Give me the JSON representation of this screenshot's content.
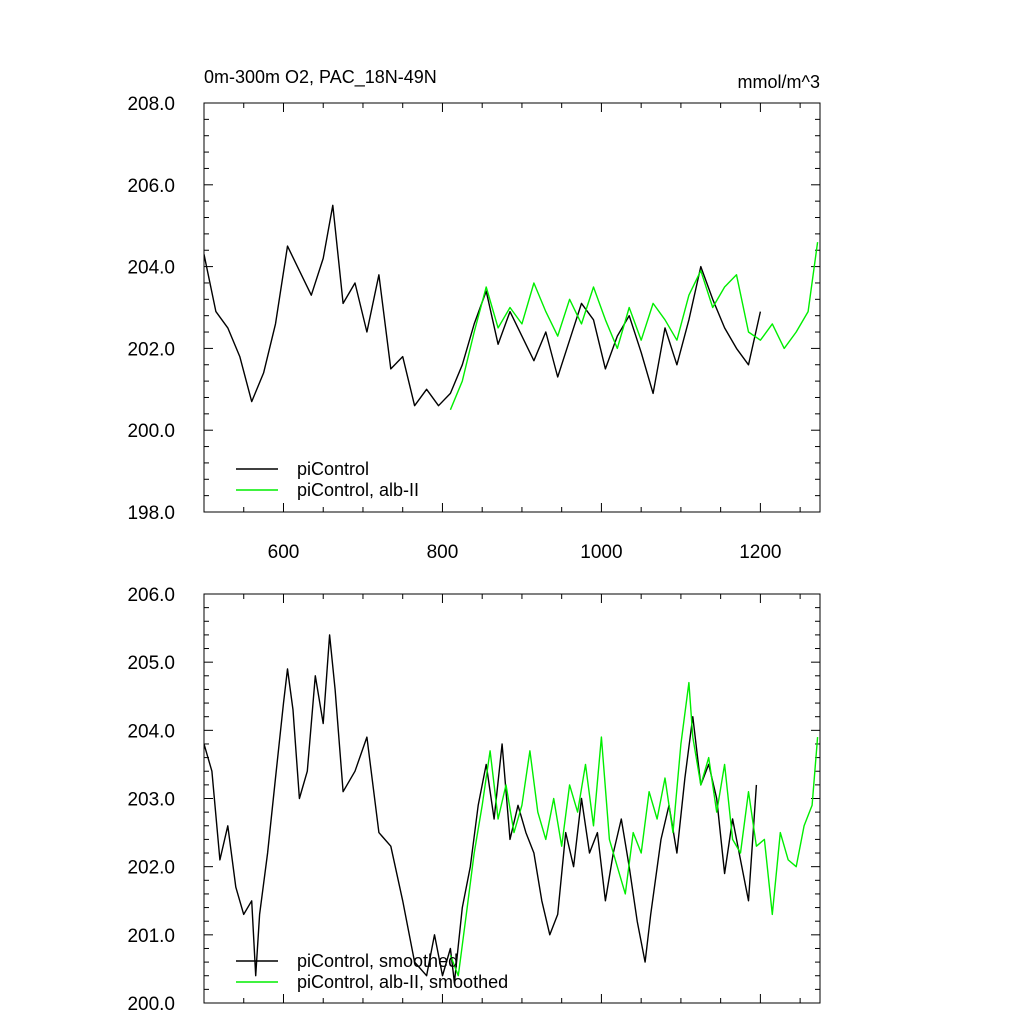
{
  "chart_data": [
    {
      "type": "line",
      "title": "0m-300m O2, PAC_18N-49N",
      "units_label": "mmol/m^3",
      "xlim": [
        500,
        1275
      ],
      "ylim": [
        198.0,
        208.0
      ],
      "x_ticks": [
        {
          "value": 600,
          "label": "600"
        },
        {
          "value": 800,
          "label": "800"
        },
        {
          "value": 1000,
          "label": "1000"
        },
        {
          "value": 1200,
          "label": "1200"
        }
      ],
      "y_ticks": [
        {
          "value": 198.0,
          "label": "198.0"
        },
        {
          "value": 200.0,
          "label": "200.0"
        },
        {
          "value": 202.0,
          "label": "202.0"
        },
        {
          "value": 204.0,
          "label": "204.0"
        },
        {
          "value": 206.0,
          "label": "206.0"
        },
        {
          "value": 208.0,
          "label": "208.0"
        }
      ],
      "show_x_labels": true,
      "legend": [
        {
          "label": "piControl",
          "color": "#000000"
        },
        {
          "label": "piControl, alb-II",
          "color": "#00ee00"
        }
      ],
      "series": [
        {
          "name": "piControl",
          "color": "#000000",
          "x": [
            500,
            515,
            530,
            545,
            560,
            575,
            590,
            605,
            620,
            635,
            650,
            662,
            675,
            690,
            705,
            720,
            735,
            750,
            765,
            780,
            795,
            810,
            825,
            840,
            855,
            870,
            885,
            900,
            915,
            930,
            945,
            960,
            975,
            990,
            1005,
            1020,
            1035,
            1050,
            1065,
            1080,
            1095,
            1110,
            1125,
            1140,
            1155,
            1170,
            1185,
            1200
          ],
          "y": [
            204.3,
            202.9,
            202.5,
            201.8,
            200.7,
            201.4,
            202.6,
            204.5,
            203.9,
            203.3,
            204.2,
            205.5,
            203.1,
            203.6,
            202.4,
            203.8,
            201.5,
            201.8,
            200.6,
            201.0,
            200.6,
            200.9,
            201.6,
            202.6,
            203.4,
            202.1,
            202.9,
            202.3,
            201.7,
            202.4,
            201.3,
            202.2,
            203.1,
            202.7,
            201.5,
            202.3,
            202.8,
            201.9,
            200.9,
            202.5,
            201.6,
            202.7,
            204.0,
            203.2,
            202.5,
            202.0,
            201.6,
            202.9
          ]
        },
        {
          "name": "piControl, alb-II",
          "color": "#00ee00",
          "x": [
            810,
            825,
            840,
            855,
            870,
            885,
            900,
            915,
            930,
            945,
            960,
            975,
            990,
            1005,
            1020,
            1035,
            1050,
            1065,
            1080,
            1095,
            1110,
            1125,
            1140,
            1155,
            1170,
            1185,
            1200,
            1215,
            1230,
            1245,
            1260,
            1272
          ],
          "y": [
            200.5,
            201.2,
            202.4,
            203.5,
            202.5,
            203.0,
            202.6,
            203.6,
            202.9,
            202.3,
            203.2,
            202.6,
            203.5,
            202.7,
            202.0,
            203.0,
            202.2,
            203.1,
            202.7,
            202.2,
            203.3,
            203.9,
            203.0,
            203.5,
            203.8,
            202.4,
            202.2,
            202.6,
            202.0,
            202.4,
            202.9,
            204.6
          ]
        }
      ]
    },
    {
      "type": "line",
      "title": "",
      "units_label": "",
      "xlim": [
        500,
        1275
      ],
      "ylim": [
        200.0,
        206.0
      ],
      "x_ticks": [
        {
          "value": 600,
          "label": "600"
        },
        {
          "value": 800,
          "label": "800"
        },
        {
          "value": 1000,
          "label": "1000"
        },
        {
          "value": 1200,
          "label": "1200"
        }
      ],
      "y_ticks": [
        {
          "value": 200.0,
          "label": "200.0"
        },
        {
          "value": 201.0,
          "label": "201.0"
        },
        {
          "value": 202.0,
          "label": "202.0"
        },
        {
          "value": 203.0,
          "label": "203.0"
        },
        {
          "value": 204.0,
          "label": "204.0"
        },
        {
          "value": 205.0,
          "label": "205.0"
        },
        {
          "value": 206.0,
          "label": "206.0"
        }
      ],
      "show_x_labels": false,
      "legend": [
        {
          "label": "piControl, smoothed",
          "color": "#000000"
        },
        {
          "label": "piControl, alb-II, smoothed",
          "color": "#00ee00"
        }
      ],
      "series": [
        {
          "name": "piControl, smoothed",
          "color": "#000000",
          "x": [
            500,
            510,
            520,
            530,
            540,
            550,
            560,
            565,
            570,
            580,
            590,
            600,
            605,
            612,
            620,
            630,
            640,
            650,
            658,
            665,
            675,
            690,
            705,
            720,
            735,
            750,
            765,
            780,
            790,
            800,
            810,
            815,
            825,
            835,
            845,
            855,
            865,
            875,
            885,
            895,
            905,
            915,
            925,
            935,
            945,
            955,
            965,
            975,
            985,
            995,
            1005,
            1015,
            1025,
            1035,
            1045,
            1055,
            1062,
            1075,
            1085,
            1095,
            1105,
            1115,
            1125,
            1135,
            1145,
            1155,
            1165,
            1175,
            1185,
            1195
          ],
          "y": [
            203.8,
            203.4,
            202.1,
            202.6,
            201.7,
            201.3,
            201.5,
            200.4,
            201.3,
            202.2,
            203.3,
            204.4,
            204.9,
            204.3,
            203.0,
            203.4,
            204.8,
            204.1,
            205.4,
            204.6,
            203.1,
            203.4,
            203.9,
            202.5,
            202.3,
            201.5,
            200.6,
            200.4,
            201.0,
            200.4,
            200.8,
            200.3,
            201.4,
            202.0,
            202.9,
            203.5,
            202.7,
            203.8,
            202.4,
            202.9,
            202.5,
            202.2,
            201.5,
            201.0,
            201.3,
            202.5,
            202.0,
            203.0,
            202.2,
            202.5,
            201.5,
            202.2,
            202.7,
            202.0,
            201.2,
            200.6,
            201.3,
            202.4,
            202.9,
            202.2,
            203.3,
            204.2,
            203.2,
            203.5,
            203.0,
            201.9,
            202.7,
            202.1,
            201.5,
            203.2
          ]
        },
        {
          "name": "piControl, alb-II, smoothed",
          "color": "#00ee00",
          "x": [
            810,
            820,
            830,
            840,
            850,
            860,
            870,
            880,
            890,
            900,
            910,
            920,
            930,
            940,
            950,
            960,
            970,
            980,
            990,
            1000,
            1010,
            1020,
            1030,
            1040,
            1050,
            1060,
            1070,
            1080,
            1090,
            1100,
            1110,
            1115,
            1125,
            1135,
            1145,
            1155,
            1165,
            1175,
            1185,
            1195,
            1205,
            1215,
            1225,
            1235,
            1245,
            1255,
            1265,
            1272
          ],
          "y": [
            200.7,
            200.4,
            201.3,
            202.2,
            202.9,
            203.7,
            202.7,
            203.2,
            202.5,
            202.9,
            203.7,
            202.8,
            202.4,
            203.0,
            202.3,
            203.2,
            202.8,
            203.5,
            202.6,
            203.9,
            202.4,
            202.0,
            201.6,
            202.5,
            202.2,
            203.1,
            202.7,
            203.3,
            202.5,
            203.8,
            204.7,
            203.9,
            203.2,
            203.6,
            202.8,
            203.5,
            202.4,
            202.2,
            203.1,
            202.3,
            202.4,
            201.3,
            202.5,
            202.1,
            202.0,
            202.6,
            202.9,
            203.9
          ]
        }
      ]
    }
  ]
}
